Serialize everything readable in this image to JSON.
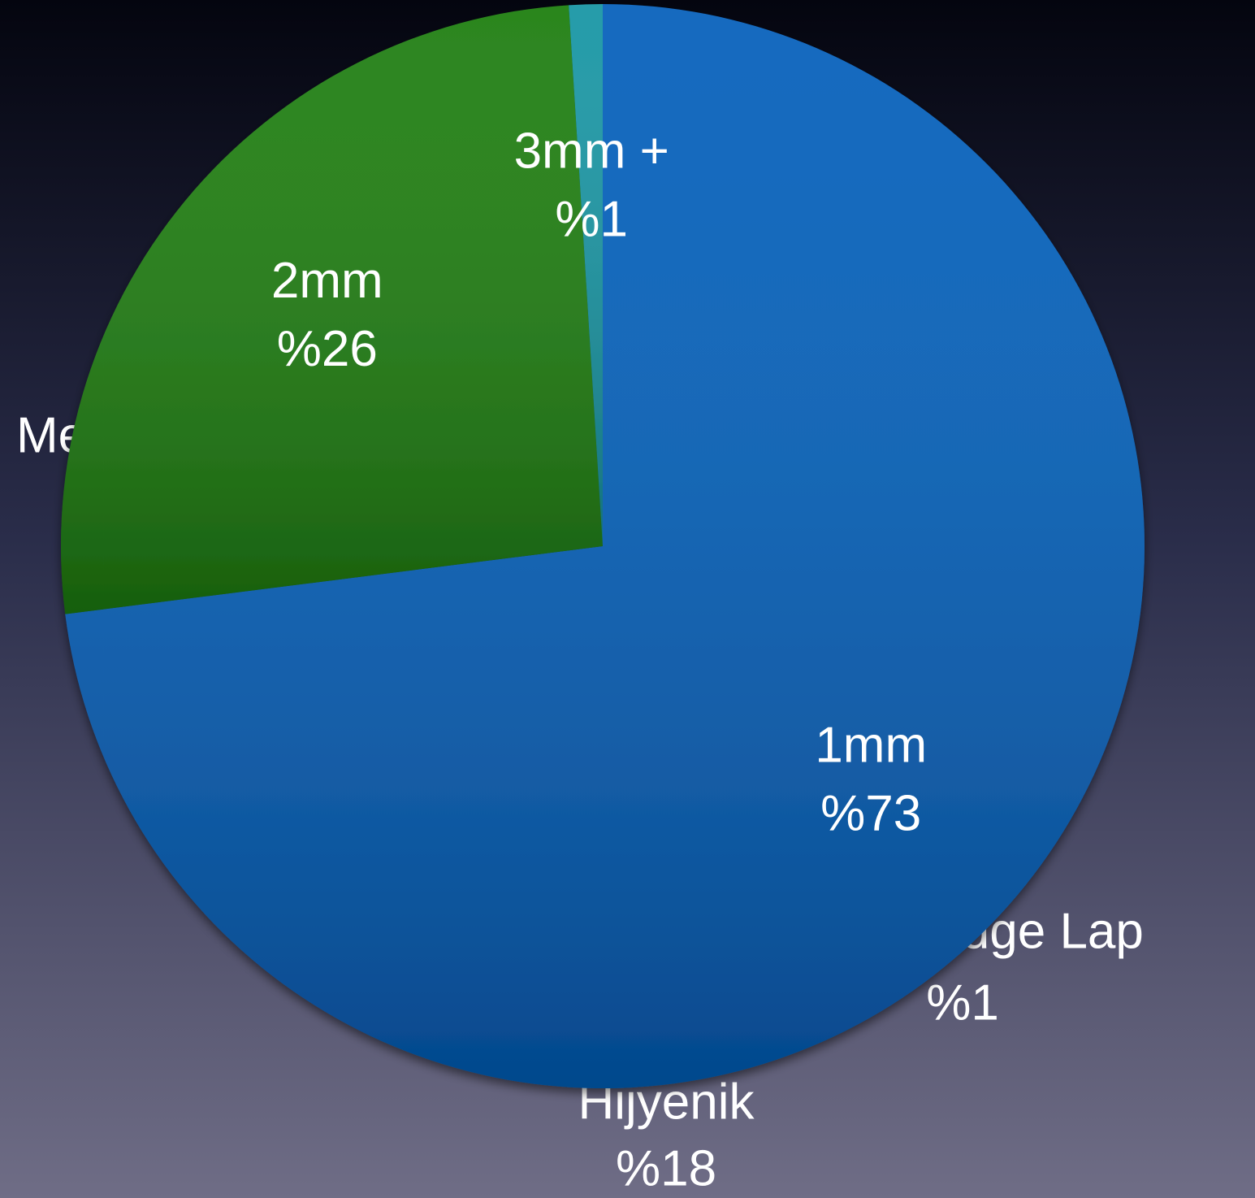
{
  "chart_data": {
    "type": "pie",
    "categories": [
      "1mm",
      "2mm",
      "3mm +"
    ],
    "values": [
      73,
      26,
      1
    ],
    "value_labels": [
      "%73",
      "%26",
      "%1"
    ],
    "colors": [
      "#0560bb",
      "#1e7e10",
      "#1896a4"
    ],
    "start_angle": 0,
    "direction": "clockwise"
  },
  "background_labels": [
    "Me",
    "idge Lap",
    "%1",
    "Hijyenik",
    "%18"
  ]
}
